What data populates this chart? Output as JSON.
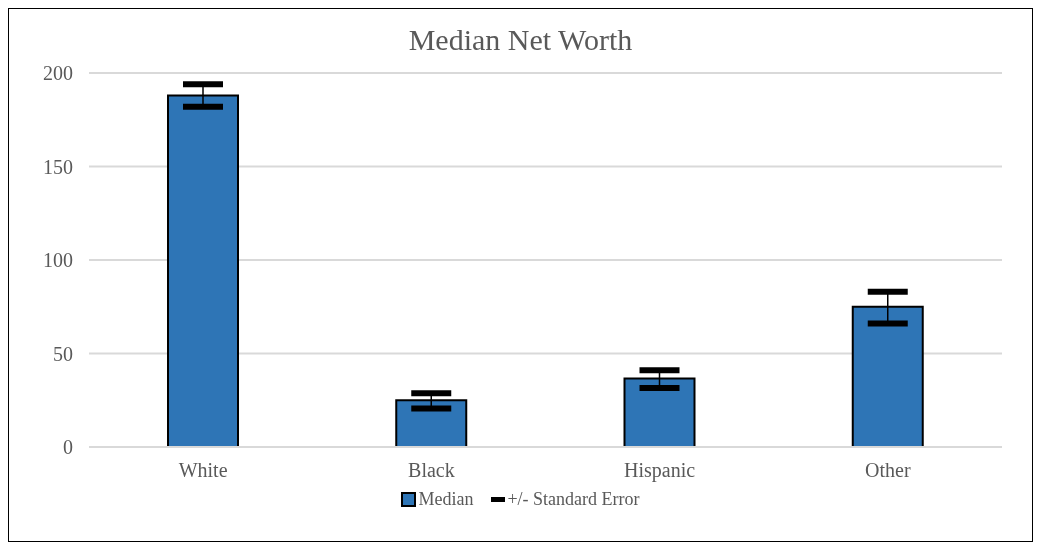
{
  "chart_data": {
    "type": "bar",
    "title": "Median Net Worth",
    "categories": [
      "White",
      "Black",
      "Hispanic",
      "Other"
    ],
    "series": [
      {
        "name": "Median",
        "color": "#2e75b6",
        "values": [
          188,
          25,
          36.6,
          75
        ],
        "errors": [
          [
            182,
            194
          ],
          [
            20.6,
            28.7
          ],
          [
            31.6,
            41
          ],
          [
            66,
            83
          ]
        ]
      }
    ],
    "ylim": [
      0,
      200
    ],
    "yticks": [
      0,
      50,
      100,
      150,
      200
    ],
    "grid": "y",
    "legend": "bottom",
    "annotations": [
      "+/- Standard Error"
    ]
  }
}
